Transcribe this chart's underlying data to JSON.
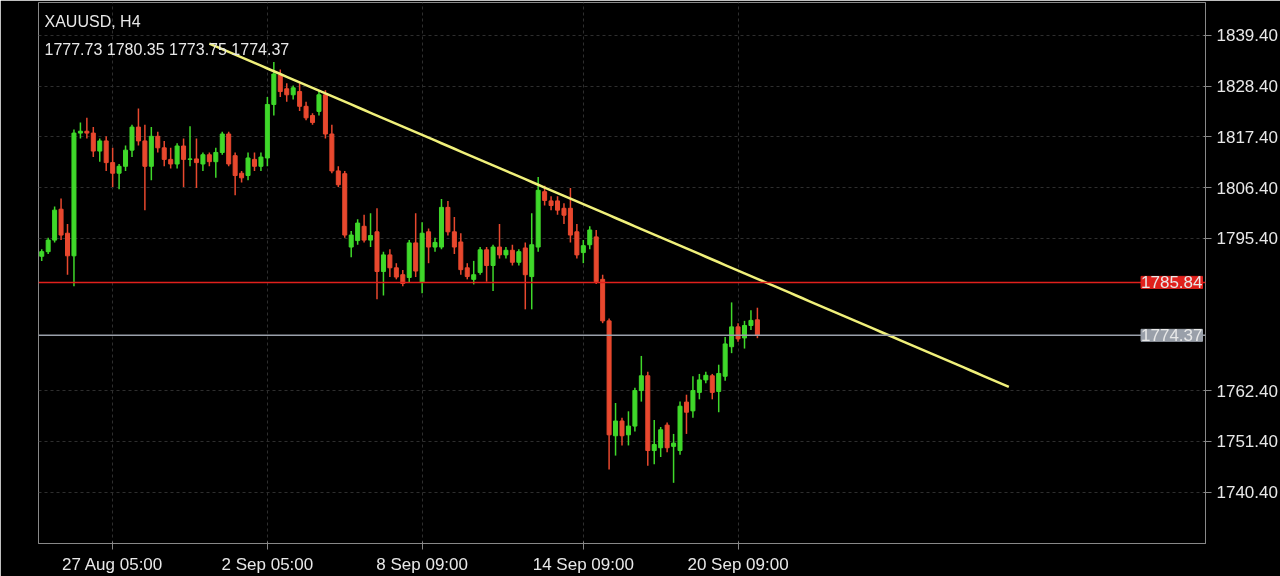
{
  "chart_data": {
    "type": "candlestick",
    "title": "XAUUSD, H4",
    "subtitle": "1777.73 1780.35 1773.75 1774.37",
    "categories": [
      null,
      null,
      null,
      null,
      null,
      null,
      null,
      null,
      null,
      null,
      null,
      "27 Aug 05:00",
      null,
      null,
      null,
      null,
      null,
      null,
      null,
      null,
      null,
      null,
      null,
      null,
      null,
      null,
      null,
      null,
      null,
      null,
      null,
      null,
      null,
      null,
      null,
      "2 Sep 05:00",
      null,
      null,
      null,
      null,
      null,
      null,
      null,
      null,
      null,
      null,
      null,
      null,
      null,
      null,
      null,
      null,
      null,
      null,
      null,
      null,
      null,
      null,
      null,
      "8 Sep 09:00",
      null,
      null,
      null,
      null,
      null,
      null,
      null,
      null,
      null,
      null,
      null,
      null,
      null,
      null,
      null,
      null,
      null,
      null,
      null,
      null,
      null,
      null,
      null,
      null,
      "14 Sep 09:00",
      null,
      null,
      null,
      null,
      null,
      null,
      null,
      null,
      null,
      null,
      null,
      null,
      null,
      null,
      null,
      null,
      null,
      null,
      null,
      null,
      null,
      null,
      null,
      "20 Sep 09:00",
      null,
      null,
      null,
      null,
      null,
      null,
      null,
      null,
      null,
      null,
      null,
      null,
      null,
      null,
      null,
      null,
      null,
      null,
      null,
      null,
      null,
      null,
      null,
      null,
      null,
      null,
      null,
      null,
      null,
      null,
      null,
      null,
      null,
      null,
      null,
      null,
      null,
      null,
      null,
      null,
      null,
      null,
      null,
      null,
      null,
      null,
      null,
      null,
      null,
      null,
      null,
      null,
      null,
      null,
      null,
      null,
      null,
      null,
      null,
      null,
      null,
      null,
      null,
      null,
      null,
      null,
      null,
      null,
      null,
      null,
      null,
      null
    ],
    "ohlc": [
      [
        1791.5,
        1793,
        1790.5,
        1792.5
      ],
      [
        1792.5,
        1795.5,
        1792,
        1795
      ],
      [
        1795,
        1802.3,
        1794.5,
        1801.5
      ],
      [
        1801.7,
        1804,
        1795,
        1796.1
      ],
      [
        1796.5,
        1798.5,
        1787.5,
        1791.6
      ],
      [
        1791.6,
        1819,
        1785,
        1818.2
      ],
      [
        1818.2,
        1820.5,
        1817,
        1818.6
      ],
      [
        1818.6,
        1821.5,
        1817,
        1818.2
      ],
      [
        1818.2,
        1819.5,
        1813,
        1814.3
      ],
      [
        1814.3,
        1817,
        1812,
        1816.5
      ],
      [
        1816.5,
        1817.5,
        1810,
        1811.8
      ],
      [
        1811.8,
        1815,
        1806.5,
        1809.5
      ],
      [
        1809.5,
        1811.5,
        1806,
        1811
      ],
      [
        1811,
        1815.5,
        1810,
        1814.5
      ],
      [
        1814.5,
        1820,
        1813,
        1819.5
      ],
      [
        1819.5,
        1823.5,
        1815.5,
        1816.5
      ],
      [
        1816.5,
        1820,
        1801.5,
        1811
      ],
      [
        1811,
        1819.5,
        1808,
        1817.5
      ],
      [
        1817.5,
        1818.5,
        1814,
        1815
      ],
      [
        1815,
        1816.5,
        1811,
        1812.5
      ],
      [
        1812.5,
        1815,
        1810.5,
        1811.5
      ],
      [
        1811.5,
        1816,
        1810.5,
        1815.4
      ],
      [
        1815.4,
        1817,
        1806.5,
        1812.5
      ],
      [
        1812.5,
        1819.7,
        1811,
        1812.6
      ],
      [
        1812.6,
        1817,
        1806.3,
        1811.8
      ],
      [
        1811.5,
        1814,
        1810,
        1813.5
      ],
      [
        1813.5,
        1814,
        1811,
        1812
      ],
      [
        1812,
        1815,
        1808.5,
        1814
      ],
      [
        1814,
        1818.5,
        1813.5,
        1818
      ],
      [
        1818,
        1818.5,
        1811,
        1811.5
      ],
      [
        1813.3,
        1814,
        1804.7,
        1809
      ],
      [
        1809.5,
        1810,
        1807.5,
        1808.5
      ],
      [
        1809,
        1814,
        1808,
        1812.8
      ],
      [
        1812.5,
        1814,
        1810,
        1811
      ],
      [
        1811,
        1814,
        1810,
        1813
      ],
      [
        1812.8,
        1826,
        1811,
        1824.4
      ],
      [
        1824.4,
        1833.6,
        1822,
        1831
      ],
      [
        1830.8,
        1832,
        1826,
        1827.2
      ],
      [
        1827.8,
        1829,
        1825,
        1826.5
      ],
      [
        1826.5,
        1828.5,
        1825.5,
        1828
      ],
      [
        1827.2,
        1829,
        1823,
        1824
      ],
      [
        1824,
        1825,
        1821,
        1821.5
      ],
      [
        1822,
        1822.5,
        1820,
        1820.5
      ],
      [
        1822.9,
        1827.5,
        1822,
        1826.5
      ],
      [
        1826.5,
        1827.5,
        1817,
        1818
      ],
      [
        1818,
        1820,
        1809.5,
        1810
      ],
      [
        1810,
        1811,
        1806.5,
        1807
      ],
      [
        1809.4,
        1810,
        1795.5,
        1796.1
      ],
      [
        1793.5,
        1797,
        1791.3,
        1796.1
      ],
      [
        1794.9,
        1799.5,
        1794,
        1798.7
      ],
      [
        1798,
        1800.5,
        1794.5,
        1795
      ],
      [
        1795,
        1800.8,
        1793.5,
        1796
      ],
      [
        1796.8,
        1801.9,
        1782.2,
        1788.2
      ],
      [
        1788.2,
        1792.5,
        1783,
        1791.8
      ],
      [
        1791.8,
        1793,
        1787,
        1789
      ],
      [
        1789,
        1790,
        1786.5,
        1787
      ],
      [
        1787.5,
        1788.5,
        1785,
        1785.6
      ],
      [
        1786.9,
        1795,
        1785.8,
        1794.4
      ],
      [
        1794.4,
        1800.8,
        1787,
        1788.3
      ],
      [
        1785.8,
        1798.9,
        1783.5,
        1796.5
      ],
      [
        1796.8,
        1797.5,
        1790,
        1793.5
      ],
      [
        1793.5,
        1795.5,
        1792.5,
        1794.5
      ],
      [
        1793.5,
        1803.9,
        1793,
        1802.1
      ],
      [
        1802.1,
        1803.5,
        1796,
        1796.8
      ],
      [
        1796.8,
        1800,
        1792,
        1793.5
      ],
      [
        1794.6,
        1796.5,
        1787.5,
        1788.6
      ],
      [
        1789,
        1790,
        1786.5,
        1787.1
      ],
      [
        1786.5,
        1790.5,
        1785.4,
        1787.5
      ],
      [
        1788,
        1793.5,
        1787.5,
        1792.9
      ],
      [
        1792.9,
        1793.5,
        1786,
        1789.5
      ],
      [
        1789.5,
        1794,
        1784,
        1793.5
      ],
      [
        1793.5,
        1798.5,
        1791,
        1791.8
      ],
      [
        1791.8,
        1793.5,
        1791,
        1792.8
      ],
      [
        1792.8,
        1794,
        1789.5,
        1790.2
      ],
      [
        1790.2,
        1793,
        1789.5,
        1792.5
      ],
      [
        1793.3,
        1794.5,
        1780,
        1787.5
      ],
      [
        1787.1,
        1800.8,
        1780,
        1794
      ],
      [
        1793.5,
        1808.7,
        1792.5,
        1805.8
      ],
      [
        1805.5,
        1806.8,
        1802.5,
        1803.6
      ],
      [
        1803.5,
        1804.5,
        1801.5,
        1802.5
      ],
      [
        1803.5,
        1804.5,
        1800.5,
        1801.5
      ],
      [
        1801.9,
        1803,
        1798.5,
        1800.4
      ],
      [
        1801.9,
        1806.3,
        1794.5,
        1796.1
      ],
      [
        1796.8,
        1798.5,
        1791,
        1791.8
      ],
      [
        1792.3,
        1795,
        1790,
        1793.8
      ],
      [
        1794,
        1798,
        1793,
        1797.2
      ],
      [
        1795.7,
        1797.2,
        1785.5,
        1786
      ],
      [
        1786.5,
        1787.5,
        1777,
        1777.5
      ],
      [
        1777.5,
        1778,
        1745.3,
        1752.8
      ],
      [
        1752.6,
        1759.7,
        1748.3,
        1755.8
      ],
      [
        1755.8,
        1756.5,
        1750.5,
        1752.6
      ],
      [
        1752.8,
        1757.9,
        1750.5,
        1754.7
      ],
      [
        1754.7,
        1763,
        1753.5,
        1762.4
      ],
      [
        1762.4,
        1769.9,
        1760,
        1765.6
      ],
      [
        1765.6,
        1766.5,
        1746.1,
        1749.4
      ],
      [
        1749.4,
        1756,
        1746.4,
        1750.7
      ],
      [
        1750,
        1754.5,
        1748,
        1753.9
      ],
      [
        1754.9,
        1755.5,
        1749,
        1750
      ],
      [
        1750.3,
        1753,
        1742.4,
        1751
      ],
      [
        1749.4,
        1760,
        1748.5,
        1759
      ],
      [
        1759.9,
        1761.5,
        1753,
        1757.7
      ],
      [
        1758,
        1765.5,
        1756.5,
        1762.4
      ],
      [
        1762,
        1766,
        1760.5,
        1764.7
      ],
      [
        1764.7,
        1766.5,
        1764,
        1765.7
      ],
      [
        1765.6,
        1766,
        1760.5,
        1762
      ],
      [
        1762.2,
        1768,
        1757.7,
        1766.1
      ],
      [
        1765.5,
        1774,
        1764.5,
        1772.5
      ],
      [
        1771.9,
        1781.5,
        1770.5,
        1776.2
      ],
      [
        1776.2,
        1777,
        1773,
        1773.6
      ],
      [
        1773.8,
        1777.5,
        1771.5,
        1776.5
      ],
      [
        1776.5,
        1779.8,
        1775.5,
        1777.6
      ],
      [
        1777.73,
        1780.35,
        1773.75,
        1774.37
      ],
      null,
      null,
      null,
      null,
      null,
      null,
      null,
      null,
      null,
      null,
      null,
      null,
      null,
      null,
      null,
      null,
      null,
      null,
      null,
      null,
      null,
      null,
      null,
      null,
      null,
      null,
      null,
      null,
      null,
      null,
      null,
      null,
      null,
      null,
      null,
      null,
      null,
      null,
      null,
      null,
      null,
      null,
      null,
      null,
      null,
      null,
      null,
      null,
      null,
      null,
      null,
      null,
      null,
      null,
      null,
      null,
      null,
      null,
      null,
      null,
      null,
      null,
      null,
      null,
      null,
      null,
      null,
      null,
      null
    ],
    "colors": [
      "#3fd82a",
      "#3fd82a",
      "#3fd82a",
      "#e8482e",
      "#e8482e",
      "#3fd82a",
      "#3fd82a",
      "#e8482e",
      "#e8482e",
      "#3fd82a",
      "#e8482e",
      "#e8482e",
      "#3fd82a",
      "#3fd82a",
      "#3fd82a",
      "#e8482e",
      "#e8482e",
      "#3fd82a",
      "#e8482e",
      "#e8482e",
      "#e8482e",
      "#3fd82a",
      "#e8482e",
      "#3fd82a",
      "#e8482e",
      "#3fd82a",
      "#e8482e",
      "#3fd82a",
      "#3fd82a",
      "#e8482e",
      "#e8482e",
      "#e8482e",
      "#3fd82a",
      "#e8482e",
      "#3fd82a",
      "#3fd82a",
      "#3fd82a",
      "#e8482e",
      "#e8482e",
      "#3fd82a",
      "#e8482e",
      "#e8482e",
      "#e8482e",
      "#3fd82a",
      "#e8482e",
      "#e8482e",
      "#e8482e",
      "#e8482e",
      "#3fd82a",
      "#3fd82a",
      "#e8482e",
      "#3fd82a",
      "#e8482e",
      "#3fd82a",
      "#e8482e",
      "#e8482e",
      "#e8482e",
      "#3fd82a",
      "#e8482e",
      "#3fd82a",
      "#e8482e",
      "#3fd82a",
      "#3fd82a",
      "#e8482e",
      "#e8482e",
      "#e8482e",
      "#e8482e",
      "#3fd82a",
      "#3fd82a",
      "#e8482e",
      "#3fd82a",
      "#e8482e",
      "#3fd82a",
      "#e8482e",
      "#3fd82a",
      "#e8482e",
      "#3fd82a",
      "#3fd82a",
      "#e8482e",
      "#e8482e",
      "#e8482e",
      "#e8482e",
      "#e8482e",
      "#e8482e",
      "#3fd82a",
      "#3fd82a",
      "#e8482e",
      "#e8482e",
      "#e8482e",
      "#3fd82a",
      "#e8482e",
      "#3fd82a",
      "#3fd82a",
      "#3fd82a",
      "#e8482e",
      "#3fd82a",
      "#3fd82a",
      "#e8482e",
      "#3fd82a",
      "#3fd82a",
      "#e8482e",
      "#3fd82a",
      "#3fd82a",
      "#3fd82a",
      "#e8482e",
      "#3fd82a",
      "#3fd82a",
      "#3fd82a",
      "#e8482e",
      "#3fd82a",
      "#3fd82a",
      "#e8482e",
      null,
      null,
      null,
      null,
      null,
      null,
      null,
      null,
      null,
      null,
      null,
      null,
      null,
      null,
      null,
      null,
      null,
      null,
      null,
      null,
      null,
      null,
      null,
      null,
      null,
      null,
      null,
      null,
      null,
      null,
      null,
      null,
      null,
      null,
      null,
      null,
      null,
      null,
      null,
      null,
      null,
      null,
      null,
      null,
      null,
      null,
      null,
      null,
      null,
      null,
      null,
      null,
      null,
      null,
      null,
      null,
      null,
      null,
      null,
      null,
      null,
      null,
      null,
      null,
      null,
      null,
      null,
      null,
      null
    ],
    "series": [
      {
        "type": "line",
        "color": "#f0f07a",
        "values": [
          null,
          null,
          null,
          null,
          null,
          null,
          null,
          null,
          null,
          null,
          null,
          null,
          null,
          null,
          null,
          null,
          null,
          null,
          null,
          null,
          null,
          null,
          null,
          null,
          null,
          null,
          1837.6,
          1837,
          1836.4,
          1835.8,
          1835.2,
          1834.6,
          1834,
          1833.4,
          1832.8,
          1832.2,
          1831.6,
          1831,
          1830.4,
          1829.8,
          1829.2,
          1828.6,
          1828,
          1827.4,
          1826.8,
          1826.2,
          1825.6,
          1825,
          1824.4,
          1823.8,
          1823.2,
          1822.6,
          1822,
          1821.4,
          1820.8,
          1820.2,
          1819.6,
          1819,
          1818.4,
          1817.8,
          1817.2,
          1816.6,
          1816,
          1815.4,
          1814.8,
          1814.2,
          1813.6,
          1813,
          1812.4,
          1811.8,
          1811.2,
          1810.6,
          1810,
          1809.4,
          1808.8,
          1808.2,
          1807.6,
          1807,
          1806.4,
          1805.8,
          1805.2,
          1804.6,
          1804,
          1803.4,
          1802.8,
          1802.2,
          1801.6,
          1801,
          1800.4,
          1799.8,
          1799.2,
          1798.6,
          1798,
          1797.4,
          1796.8,
          1796.2,
          1795.6,
          1795,
          1794.4,
          1793.8,
          1793.2,
          1792.6,
          1792,
          1791.4,
          1790.8,
          1790.2,
          1789.6,
          1789,
          1788.4,
          1787.8,
          1787.2,
          1786.6,
          1786,
          1785.4,
          1784.8,
          1784.2,
          1783.6,
          1783,
          1782.4,
          1781.8,
          1781.2,
          1780.6,
          1780,
          1779.4,
          1778.8,
          1778.2,
          1777.6,
          1777,
          1776.4,
          1775.8,
          1775.2,
          1774.6,
          1774,
          1773.4,
          1772.8,
          1772.2,
          1771.6,
          1771,
          1770.4,
          1769.8,
          1769.2,
          1768.6,
          1768,
          1767.4,
          1766.8,
          1766.2,
          1765.6,
          1765,
          1764.4,
          1763.8,
          1763.2,
          null,
          null,
          null,
          null,
          null,
          null,
          null,
          null,
          null,
          null,
          null,
          null,
          null,
          null,
          null,
          null,
          null,
          null,
          null,
          null,
          null,
          null,
          null,
          null,
          null,
          null,
          null,
          null,
          null,
          null
        ]
      }
    ],
    "ylim": [
      1729.25,
      1846.5
    ],
    "yticks": [
      {
        "value": 1839.4,
        "label": "1839.40"
      },
      {
        "value": 1828.4,
        "label": "1828.40"
      },
      {
        "value": 1817.4,
        "label": "1817.40"
      },
      {
        "value": 1806.4,
        "label": "1806.40"
      },
      {
        "value": 1795.4,
        "label": "1795.40"
      },
      {
        "value": 1762.4,
        "label": "1762.40"
      },
      {
        "value": 1751.4,
        "label": "1751.40"
      },
      {
        "value": 1740.4,
        "label": "1740.40"
      }
    ],
    "ref_lines": [
      {
        "axis": "y",
        "value": 1785.84,
        "label": "1785.84",
        "color": "#e0201c"
      },
      {
        "axis": "y",
        "value": 1774.37,
        "label": "1774.37",
        "color": "#9aa0aa"
      }
    ],
    "grid": true
  }
}
